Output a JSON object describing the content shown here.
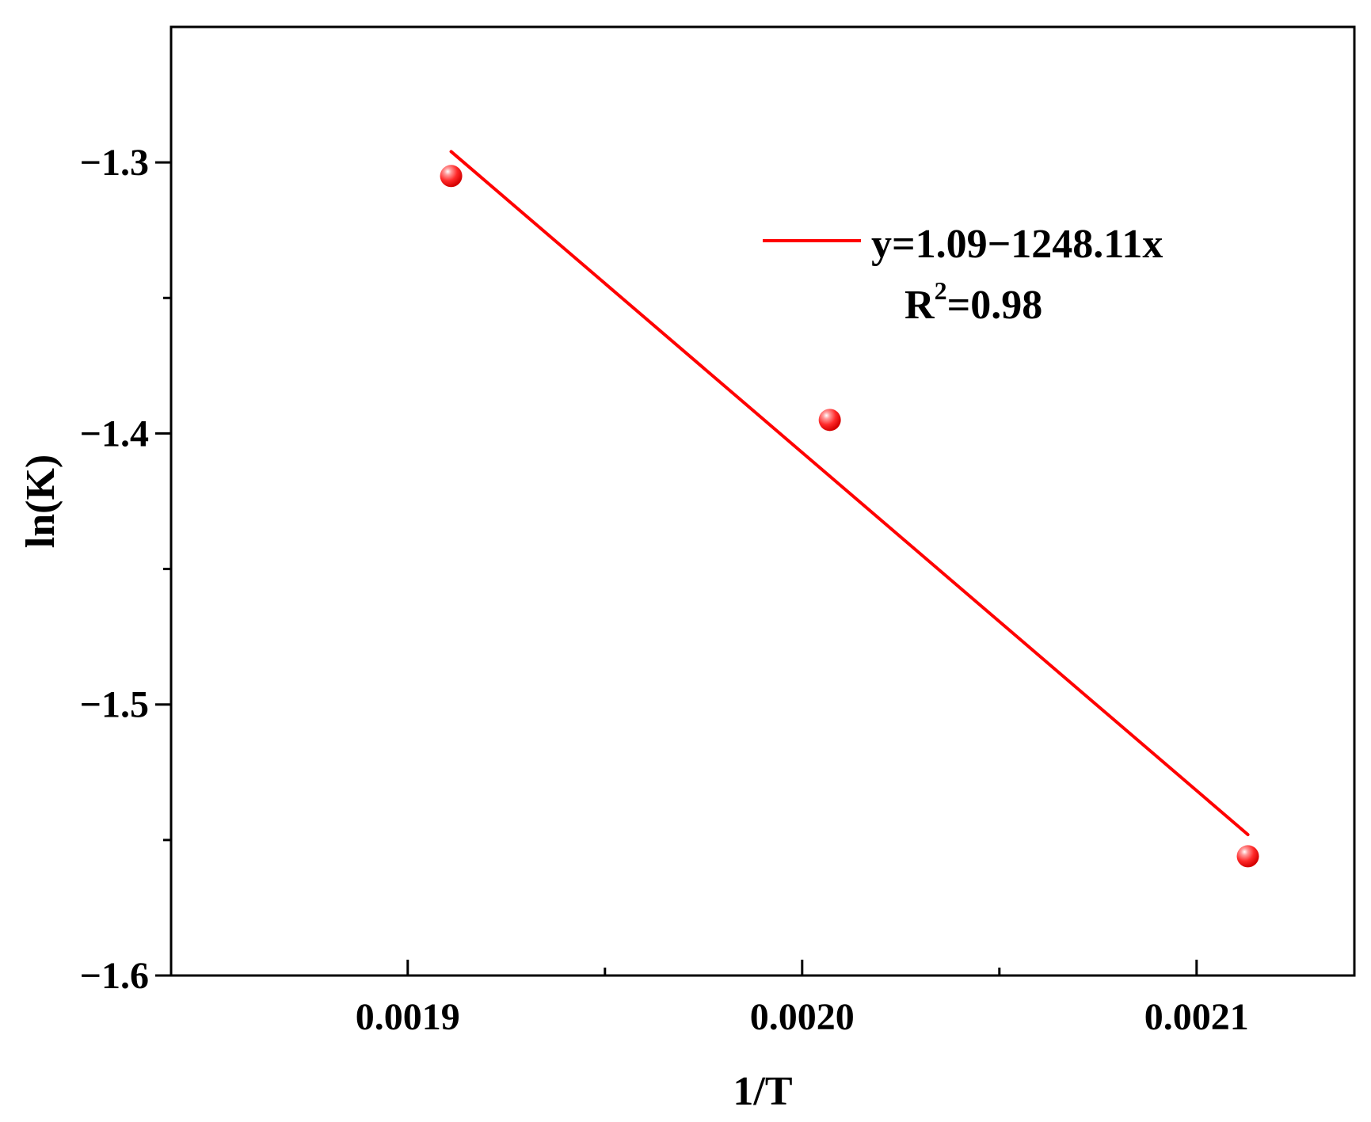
{
  "chart_data": {
    "type": "scatter",
    "xlabel": "1/T",
    "ylabel": "ln(K)",
    "xlim": [
      0.00184,
      0.00214
    ],
    "ylim": [
      -1.6,
      -1.25
    ],
    "x_ticks": [
      0.0019,
      0.002,
      0.0021
    ],
    "x_tick_labels": [
      "0.0019",
      "0.0020",
      "0.0021"
    ],
    "x_minor_ticks": [
      0.00195,
      0.00205
    ],
    "y_ticks": [
      -1.3,
      -1.4,
      -1.5,
      -1.6
    ],
    "y_tick_labels": [
      "−1.3",
      "−1.4",
      "−1.5",
      "−1.6"
    ],
    "y_minor_ticks": [
      -1.35,
      -1.45,
      -1.55
    ],
    "grid": false,
    "series": [
      {
        "kind": "scatter",
        "x": [
          0.001911,
          0.002007,
          0.002113
        ],
        "y": [
          -1.305,
          -1.395,
          -1.556
        ],
        "color": "#ff2a2a"
      },
      {
        "kind": "fit-line",
        "x": [
          0.001911,
          0.002113
        ],
        "y": [
          -1.296,
          -1.548
        ],
        "color": "#ff0000"
      }
    ],
    "legend": {
      "placement": "top-right",
      "equation": "y=1.09−1248.11x",
      "r2_base": "R",
      "r2_sup": "2",
      "r2_value": "=0.98"
    }
  }
}
